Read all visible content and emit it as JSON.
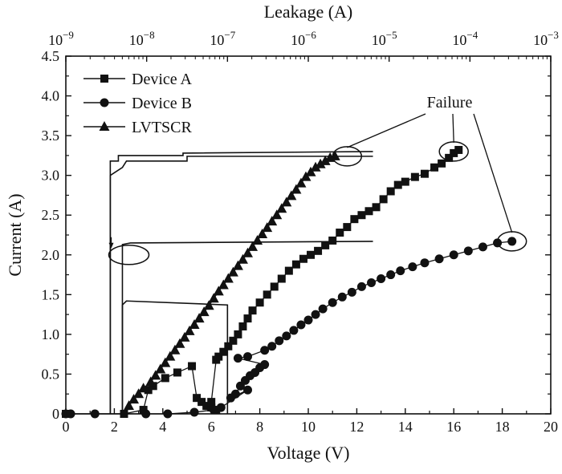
{
  "chart_data": {
    "type": "scatter",
    "title": "",
    "xlabel": "Voltage (V)",
    "ylabel": "Current (A)",
    "x2label": "Leakage (A)",
    "xlim": [
      0,
      20
    ],
    "ylim": [
      0,
      4.5
    ],
    "x2lim_log10": [
      -9,
      -3
    ],
    "x_ticks": [
      0,
      2,
      4,
      6,
      8,
      10,
      12,
      14,
      16,
      18,
      20
    ],
    "x_tick_labels": [
      "0",
      "2",
      "4",
      "6",
      "8",
      "10",
      "12",
      "14",
      "16",
      "18",
      "20"
    ],
    "y_ticks": [
      0,
      0.5,
      1,
      1.5,
      2,
      2.5,
      3,
      3.5,
      4,
      4.5
    ],
    "y_tick_labels": [
      "0",
      "0.5",
      "1.0",
      "1.5",
      "2.0",
      "2.5",
      "3.0",
      "3.5",
      "4.0",
      "4.5"
    ],
    "x2_ticks": [
      -9,
      -8,
      -7,
      -6,
      -5,
      -4,
      -3
    ],
    "x2_tick_base": "10",
    "x2_tick_exponents": [
      "−9",
      "−8",
      "−7",
      "−6",
      "−5",
      "−4",
      "−3"
    ],
    "grid": false,
    "legend_position": "top-left",
    "annotation_text": "Failure",
    "series": [
      {
        "name": "Device A",
        "marker": "square",
        "x": [
          0,
          0.1,
          2.4,
          3.2,
          3.4,
          3.6,
          4.1,
          4.6,
          5.2,
          5.4,
          5.6,
          5.8,
          6.0,
          6.2,
          6.0,
          6.2,
          6.3,
          6.5,
          6.7,
          6.9,
          7.1,
          7.3,
          7.5,
          7.7,
          8.0,
          8.3,
          8.6,
          8.9,
          9.2,
          9.5,
          9.8,
          10.1,
          10.4,
          10.7,
          11.0,
          11.3,
          11.6,
          11.9,
          12.2,
          12.5,
          12.8,
          13.1,
          13.4,
          13.7,
          14.0,
          14.4,
          14.8,
          15.2,
          15.5,
          15.8,
          16.0,
          16.2
        ],
        "y": [
          0,
          0,
          0,
          0.05,
          0.3,
          0.35,
          0.45,
          0.52,
          0.6,
          0.2,
          0.15,
          0.1,
          0.08,
          0.05,
          0.15,
          0.68,
          0.72,
          0.78,
          0.85,
          0.92,
          1.0,
          1.1,
          1.2,
          1.3,
          1.4,
          1.5,
          1.6,
          1.7,
          1.8,
          1.88,
          1.95,
          2.0,
          2.05,
          2.12,
          2.18,
          2.28,
          2.35,
          2.45,
          2.5,
          2.55,
          2.6,
          2.7,
          2.8,
          2.88,
          2.92,
          2.98,
          3.02,
          3.1,
          3.15,
          3.22,
          3.28,
          3.32
        ]
      },
      {
        "name": "Device B",
        "marker": "circle",
        "x": [
          0,
          0.2,
          1.2,
          3.3,
          4.2,
          5.3,
          6.1,
          6.4,
          7.5,
          6.8,
          7.0,
          7.2,
          7.4,
          7.6,
          7.8,
          8.0,
          8.2,
          7.1,
          7.5,
          8.2,
          8.5,
          8.8,
          9.1,
          9.4,
          9.7,
          10.0,
          10.3,
          10.6,
          11.0,
          11.4,
          11.8,
          12.2,
          12.6,
          13.0,
          13.4,
          13.8,
          14.3,
          14.8,
          15.4,
          16.0,
          16.6,
          17.2,
          17.8,
          18.4
        ],
        "y": [
          0,
          0,
          0,
          0,
          0,
          0.02,
          0.05,
          0.08,
          0.3,
          0.2,
          0.25,
          0.35,
          0.42,
          0.48,
          0.52,
          0.58,
          0.62,
          0.7,
          0.72,
          0.8,
          0.85,
          0.92,
          0.98,
          1.05,
          1.12,
          1.18,
          1.25,
          1.32,
          1.4,
          1.47,
          1.53,
          1.6,
          1.65,
          1.7,
          1.75,
          1.8,
          1.85,
          1.9,
          1.95,
          2.0,
          2.05,
          2.1,
          2.15,
          2.17
        ]
      },
      {
        "name": "LVTSCR",
        "marker": "triangle",
        "x": [
          2.6,
          2.8,
          3.0,
          3.2,
          3.5,
          3.7,
          3.9,
          4.1,
          4.3,
          4.5,
          4.7,
          4.9,
          5.1,
          5.3,
          5.5,
          5.7,
          5.9,
          6.1,
          6.3,
          6.5,
          6.7,
          6.9,
          7.1,
          7.3,
          7.5,
          7.7,
          7.9,
          8.1,
          8.3,
          8.5,
          8.7,
          8.9,
          9.1,
          9.3,
          9.5,
          9.7,
          9.9,
          10.1,
          10.3,
          10.5,
          10.7,
          10.9,
          11.1
        ],
        "y": [
          0.1,
          0.18,
          0.25,
          0.32,
          0.4,
          0.48,
          0.56,
          0.64,
          0.72,
          0.8,
          0.88,
          0.96,
          1.04,
          1.12,
          1.2,
          1.28,
          1.36,
          1.45,
          1.54,
          1.62,
          1.7,
          1.78,
          1.86,
          1.94,
          2.02,
          2.1,
          2.18,
          2.26,
          2.34,
          2.42,
          2.5,
          2.58,
          2.66,
          2.74,
          2.82,
          2.9,
          2.98,
          3.04,
          3.1,
          3.14,
          3.18,
          3.22,
          3.24
        ]
      }
    ],
    "leakage_curves": [
      {
        "name": "LVTSCR leakage",
        "x_log10": [
          -8.45,
          -8.45,
          -8.35,
          -8.35,
          -7.55,
          -7.55,
          -5.2
        ],
        "y": [
          0,
          3.18,
          3.18,
          3.25,
          3.25,
          3.28,
          3.3
        ]
      },
      {
        "name": "Device A leakage",
        "x_log10": [
          -8.45,
          -8.45,
          -8.3,
          -8.25,
          -7.5,
          -7.5,
          -5.2
        ],
        "y": [
          0,
          3.0,
          3.1,
          3.18,
          3.18,
          3.24,
          3.24
        ]
      },
      {
        "name": "Device B leakage",
        "x_log10": [
          -8.3,
          -8.3,
          -8.2,
          -5.2
        ],
        "y": [
          0,
          2.13,
          2.15,
          2.17
        ]
      },
      {
        "name": "Device A leakage low",
        "x_log10": [
          -8.3,
          -8.3,
          -8.25,
          -7.0,
          -7.0
        ],
        "y": [
          0,
          1.37,
          1.42,
          1.37,
          0
        ]
      }
    ],
    "failure_markers": [
      {
        "x": 11.6,
        "y": 3.24
      },
      {
        "x": 16.0,
        "y": 3.3
      },
      {
        "x": 18.4,
        "y": 2.17
      }
    ],
    "leakage_marker": {
      "x": 2.6,
      "y": 2.0
    }
  }
}
